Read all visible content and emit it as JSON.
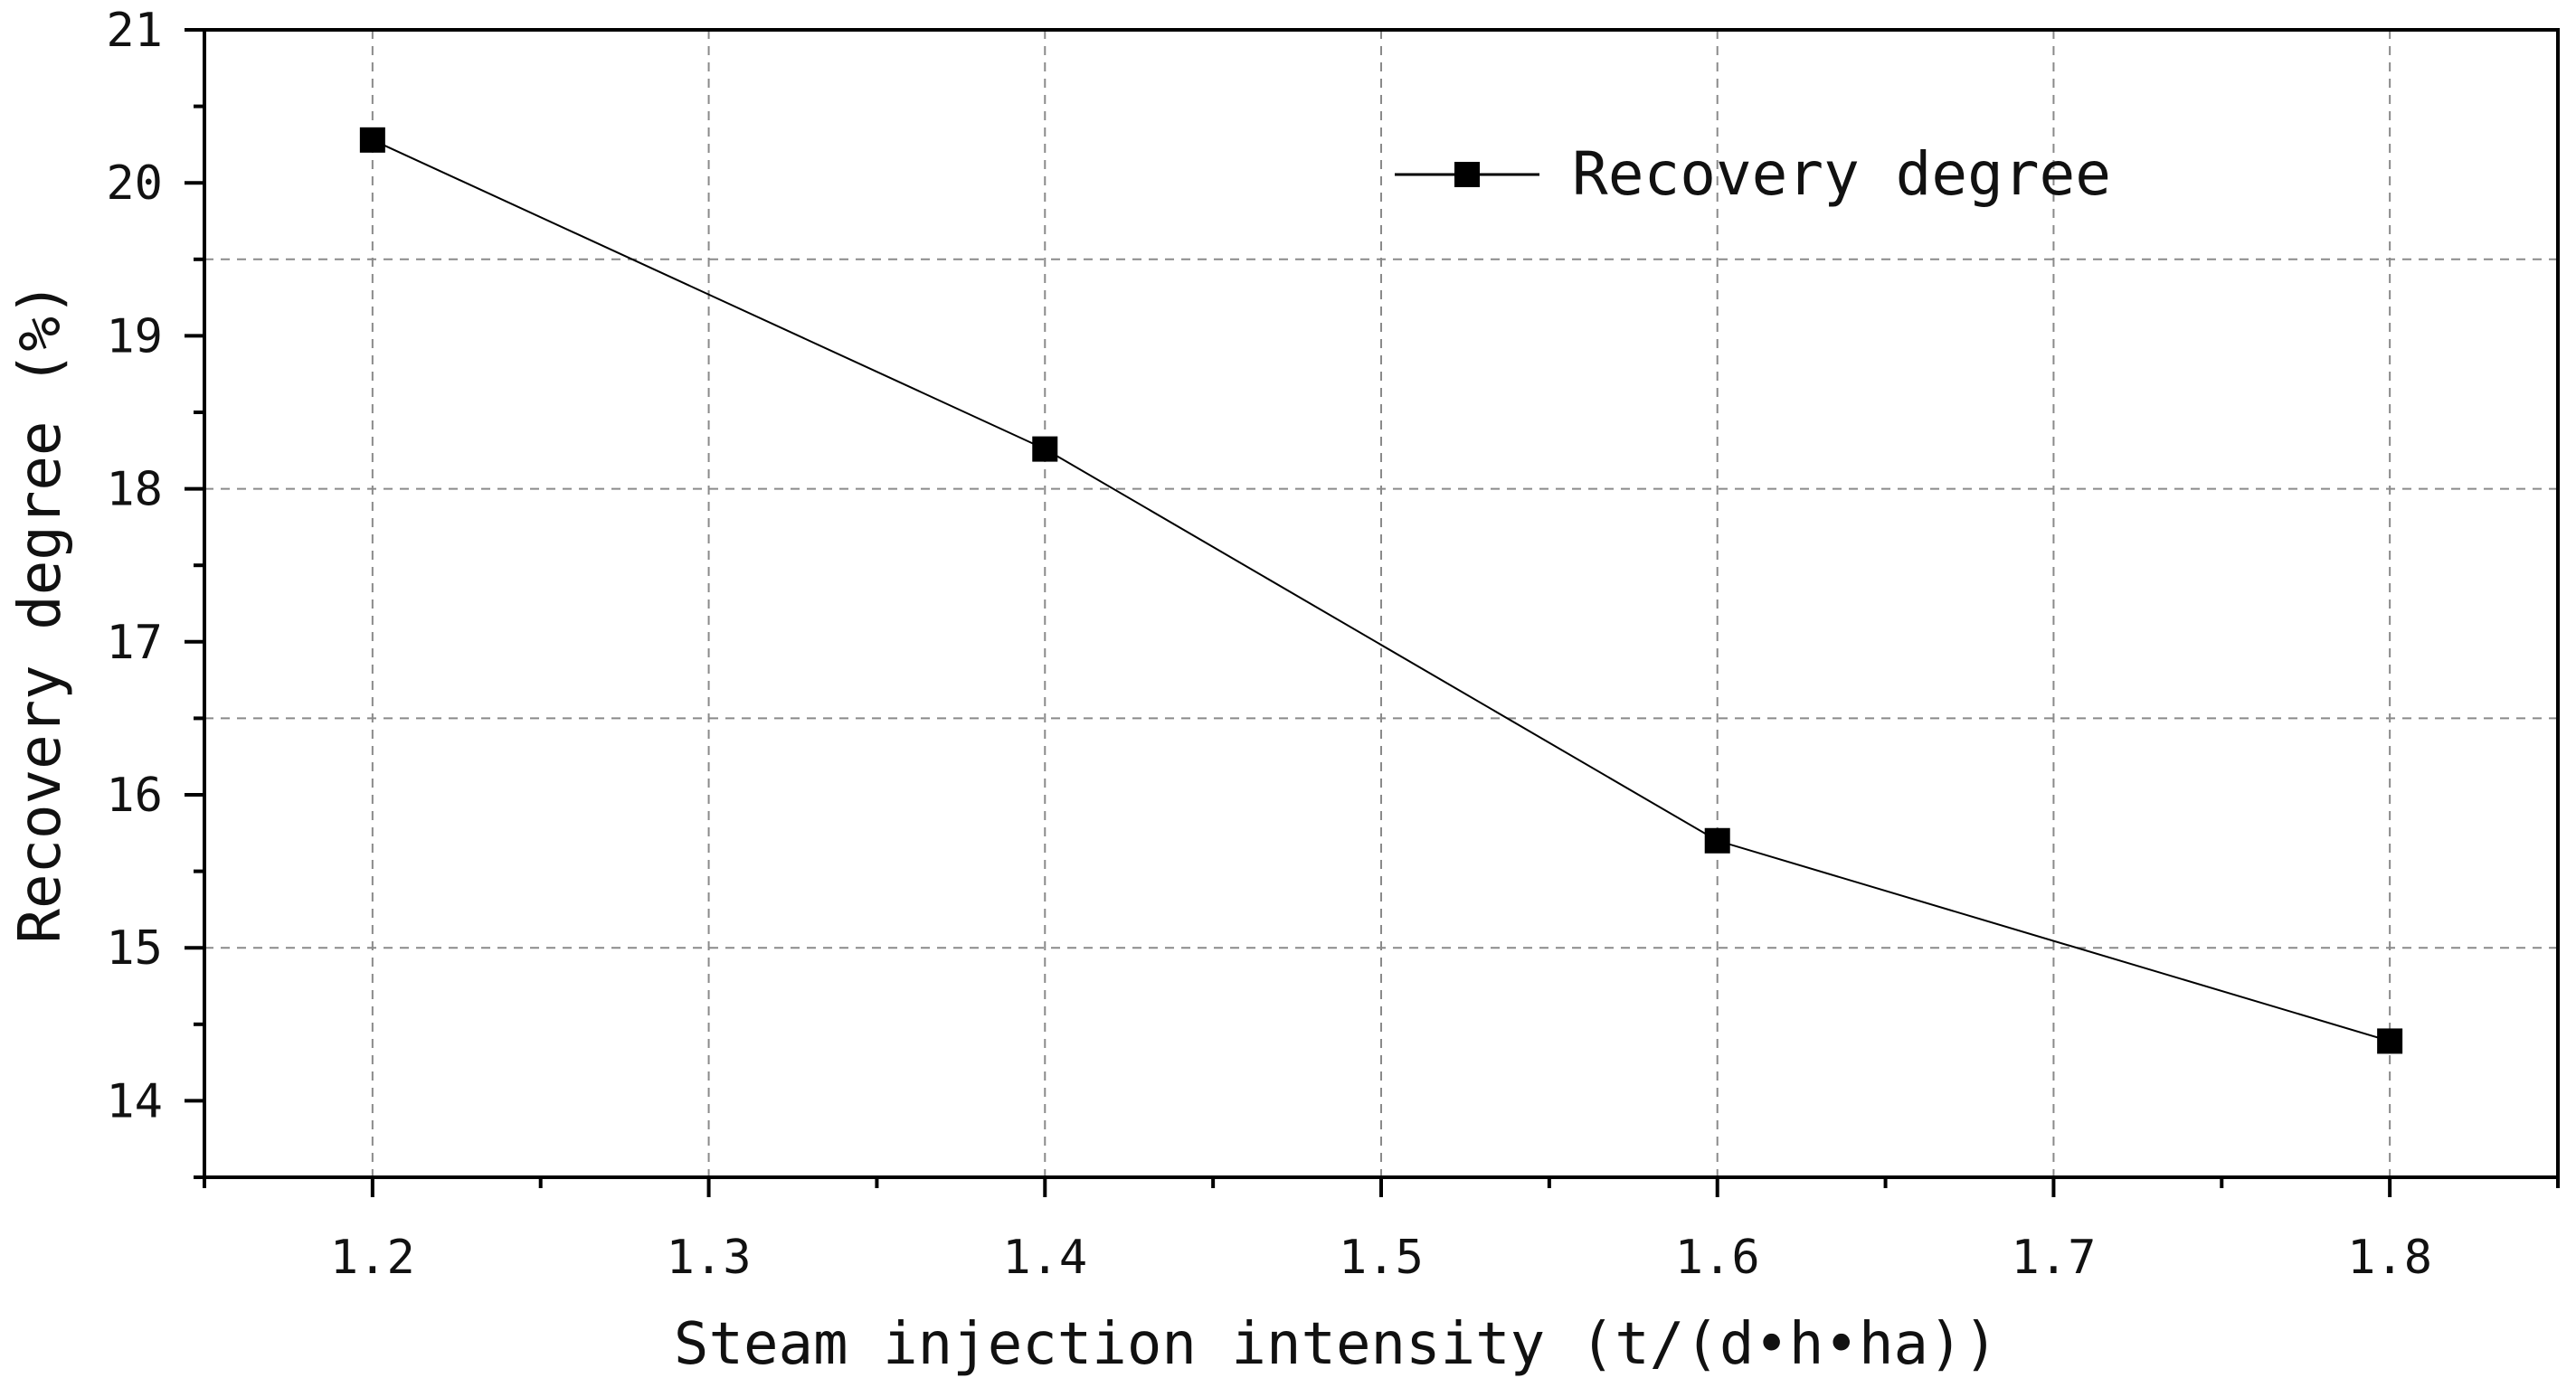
{
  "chart_data": {
    "type": "line",
    "title": "",
    "xlabel": "Steam injection intensity (t/(d•h•ha))",
    "ylabel": "Recovery degree (%)",
    "xlim": [
      1.15,
      1.85
    ],
    "ylim": [
      13.5,
      21
    ],
    "xticks": [
      1.2,
      1.3,
      1.4,
      1.5,
      1.6,
      1.7,
      1.8
    ],
    "xtick_labels": [
      "1.2",
      "1.3",
      "1.4",
      "1.5",
      "1.6",
      "1.7",
      "1.8"
    ],
    "yticks": [
      14,
      15,
      16,
      17,
      18,
      19,
      20,
      21
    ],
    "ytick_labels": [
      "14",
      "15",
      "16",
      "17",
      "18",
      "19",
      "20",
      "21"
    ],
    "grid_x": [
      1.2,
      1.3,
      1.4,
      1.5,
      1.6,
      1.7,
      1.8
    ],
    "grid_y": [
      15,
      16.5,
      18,
      19.5
    ],
    "grid": true,
    "legend_position": "top-right",
    "series": [
      {
        "name": "Recovery degree",
        "marker": "square",
        "color": "#000000",
        "x": [
          1.2,
          1.4,
          1.6,
          1.8
        ],
        "values": [
          20.28,
          18.26,
          15.7,
          14.39
        ]
      }
    ]
  }
}
